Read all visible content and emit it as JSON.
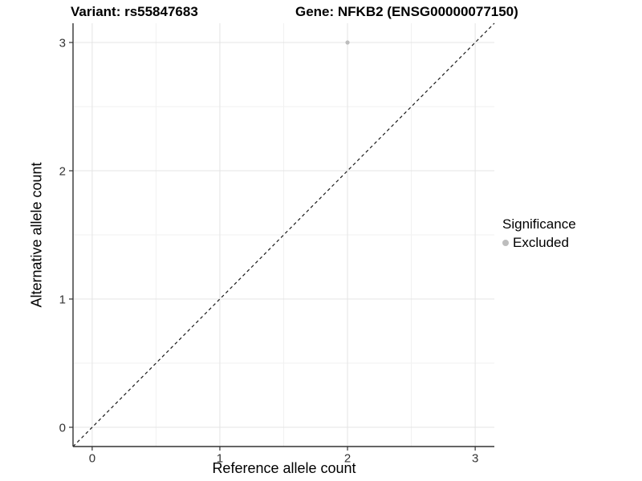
{
  "figure": {
    "titles": {
      "variant": "Variant: rs55847683",
      "gene": "Gene: NFKB2 (ENSG00000077150)"
    },
    "x_axis_label": "Reference allele count",
    "y_axis_label": "Alternative allele count",
    "legend": {
      "title": "Significance",
      "items": [
        {
          "label": "Excluded",
          "color": "#bdbdbd"
        }
      ]
    }
  },
  "chart_data": {
    "type": "scatter",
    "title": "Variant: rs55847683    Gene: NFKB2 (ENSG00000077150)",
    "xlabel": "Reference allele count",
    "ylabel": "Alternative allele count",
    "xlim": [
      -0.15,
      3.15
    ],
    "ylim": [
      -0.15,
      3.15
    ],
    "x_ticks": [
      0,
      1,
      2,
      3
    ],
    "y_ticks": [
      0,
      1,
      2,
      3
    ],
    "x_minor_ticks": [
      0.5,
      1.5,
      2.5
    ],
    "y_minor_ticks": [
      0.5,
      1.5,
      2.5
    ],
    "grid": true,
    "legend_position": "right",
    "series": [
      {
        "name": "Excluded",
        "color": "#bdbdbd",
        "points": [
          {
            "x": 2,
            "y": 3
          }
        ]
      }
    ],
    "reference_line": {
      "type": "identity",
      "style": "dashed",
      "from": [
        -0.15,
        -0.15
      ],
      "to": [
        3.15,
        3.15
      ],
      "color": "#1a1a1a"
    }
  },
  "colors": {
    "background": "#ffffff",
    "panel_background": "#ffffff",
    "grid_major": "#e4e4e4",
    "grid_minor": "#f1f1f1",
    "axis_line": "#333333",
    "tick_mark": "#333333",
    "tick_label": "#333333",
    "point": "#bdbdbd",
    "dashed_line": "#1a1a1a",
    "text": "#000000"
  }
}
